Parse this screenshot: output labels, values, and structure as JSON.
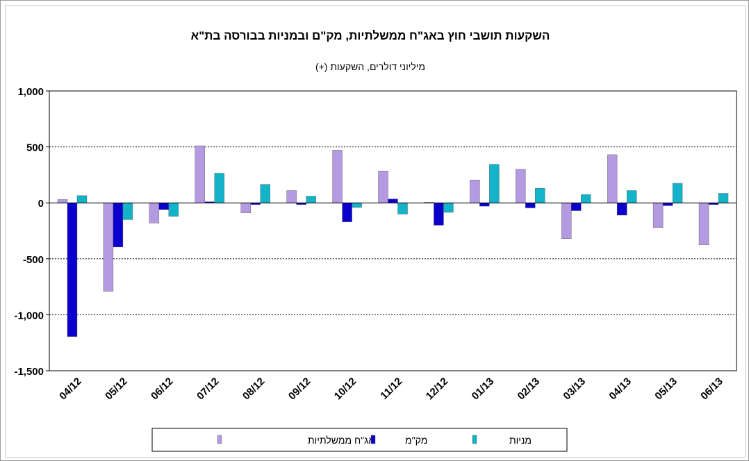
{
  "chart_data": {
    "type": "bar",
    "title": "השקעות תושבי חוץ באג\"ח ממשלתיות, מק\"ם ובמניות בבורסה בת\"א",
    "subtitle": "מיליוני דולרים, השקעות (+)",
    "categories": [
      "04/12",
      "05/12",
      "06/12",
      "07/12",
      "08/12",
      "09/12",
      "10/12",
      "11/12",
      "12/12",
      "01/13",
      "02/13",
      "03/13",
      "04/13",
      "05/13",
      "06/13"
    ],
    "series": [
      {
        "name": "אג\"ח ממשלתיות",
        "color": "#b49ae0",
        "values": [
          30,
          -790,
          -180,
          510,
          -90,
          110,
          470,
          285,
          5,
          205,
          300,
          -320,
          430,
          -220,
          -375
        ]
      },
      {
        "name": "מק\"מ",
        "color": "#0a00cc",
        "values": [
          -1195,
          -395,
          -60,
          10,
          -15,
          -15,
          -170,
          35,
          -200,
          -30,
          -45,
          -70,
          -110,
          -25,
          -15
        ]
      },
      {
        "name": "מניות",
        "color": "#13b3c9",
        "values": [
          65,
          -150,
          -120,
          265,
          165,
          60,
          -40,
          -100,
          -85,
          345,
          130,
          75,
          110,
          175,
          85
        ]
      }
    ],
    "ylim": [
      -1500,
      1000
    ],
    "yticks": [
      1000,
      500,
      0,
      -500,
      -1000,
      -1500
    ],
    "ytick_labels": [
      "1,000",
      "500",
      "0",
      "-500",
      "-1,000",
      "-1,500"
    ],
    "grid": "horizontal dotted",
    "legend": "bottom"
  }
}
